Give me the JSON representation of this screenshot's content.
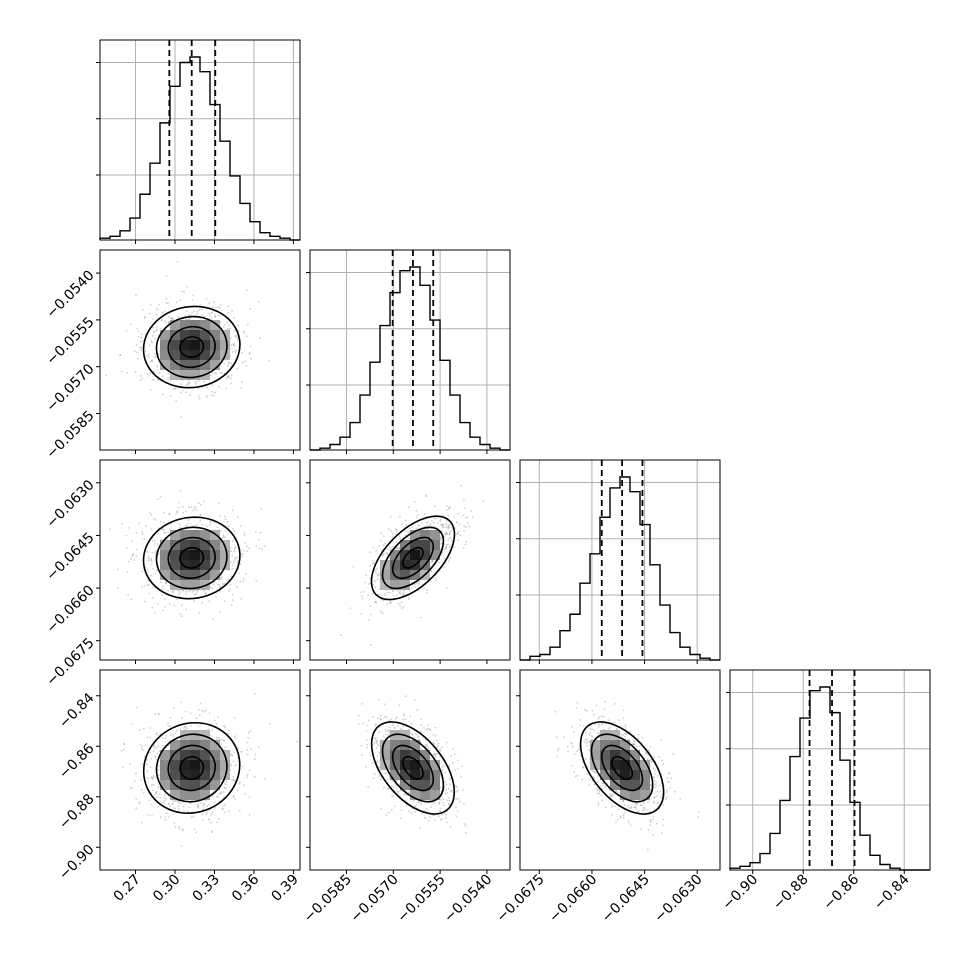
{
  "chart_data": {
    "type": "corner",
    "title": "",
    "parameters": [
      {
        "index": 0,
        "range": [
          0.243,
          0.395
        ],
        "ticks": [
          0.27,
          0.3,
          0.33,
          0.36,
          0.39
        ],
        "tick_labels": [
          "0.27",
          "0.30",
          "0.33",
          "0.36",
          "0.39"
        ],
        "quantiles": [
          0.2957,
          0.3127,
          0.3306
        ],
        "mean": 0.3127,
        "sd": 0.0178
      },
      {
        "index": 1,
        "range": [
          -0.05967,
          -0.05326
        ],
        "ticks": [
          -0.0585,
          -0.057,
          -0.0555,
          -0.054
        ],
        "tick_labels": [
          "−0.0585",
          "−0.0570",
          "−0.0555",
          "−0.0540"
        ],
        "quantiles": [
          -0.05702,
          -0.05637,
          -0.05572
        ],
        "mean": -0.05637,
        "sd": 0.00065
      },
      {
        "index": 2,
        "range": [
          -0.06805,
          -0.06235
        ],
        "ticks": [
          -0.0675,
          -0.066,
          -0.0645,
          -0.063
        ],
        "tick_labels": [
          "−0.0675",
          "−0.0660",
          "−0.0645",
          "−0.0630"
        ],
        "quantiles": [
          -0.06572,
          -0.06514,
          -0.06456
        ],
        "mean": -0.06514,
        "sd": 0.00058
      },
      {
        "index": 3,
        "range": [
          -0.909,
          -0.8298
        ],
        "ticks": [
          -0.9,
          -0.88,
          -0.86,
          -0.84
        ],
        "tick_labels": [
          "−0.90",
          "−0.88",
          "−0.86",
          "−0.84"
        ],
        "quantiles": [
          -0.8775,
          -0.8686,
          -0.8597
        ],
        "mean": -0.8686,
        "sd": 0.0089
      }
    ],
    "correlations": {
      "0-1": 0.05,
      "0-2": 0.05,
      "0-3": 0.05,
      "1-2": 0.55,
      "1-3": -0.5,
      "2-3": -0.5
    },
    "histograms": [
      [
        0.01,
        0.02,
        0.05,
        0.12,
        0.25,
        0.42,
        0.64,
        0.84,
        0.97,
        1.0,
        0.92,
        0.74,
        0.54,
        0.35,
        0.2,
        0.1,
        0.04,
        0.02,
        0.01,
        0.0
      ],
      [
        0.0,
        0.01,
        0.03,
        0.07,
        0.15,
        0.3,
        0.48,
        0.68,
        0.86,
        0.98,
        1.0,
        0.9,
        0.71,
        0.49,
        0.3,
        0.15,
        0.07,
        0.03,
        0.01,
        0.0
      ],
      [
        0.0,
        0.02,
        0.03,
        0.07,
        0.16,
        0.25,
        0.42,
        0.58,
        0.78,
        0.94,
        1.0,
        0.92,
        0.74,
        0.52,
        0.3,
        0.15,
        0.07,
        0.03,
        0.01,
        0.0
      ],
      [
        0.01,
        0.02,
        0.04,
        0.09,
        0.2,
        0.38,
        0.62,
        0.83,
        0.98,
        1.0,
        0.86,
        0.6,
        0.37,
        0.19,
        0.08,
        0.03,
        0.01,
        0.0,
        0.0,
        0.0
      ]
    ],
    "grid": true,
    "contour_levels": 4,
    "quantile_lines": [
      0.16,
      0.5,
      0.84
    ]
  }
}
